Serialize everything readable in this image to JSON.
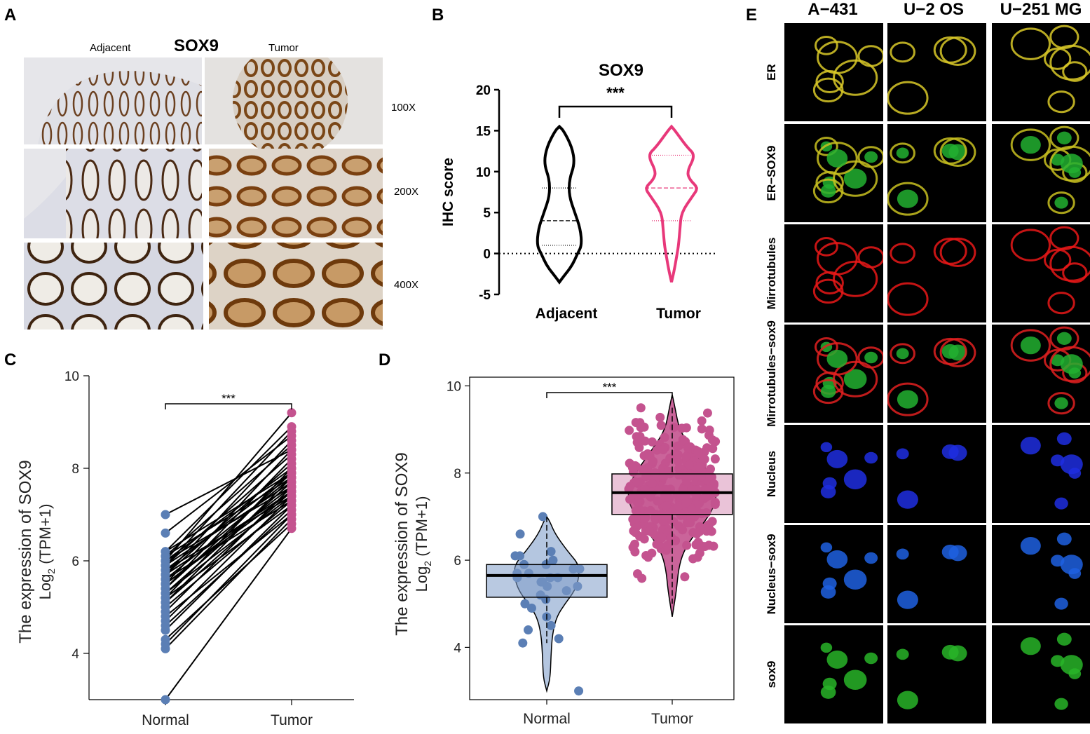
{
  "panels": {
    "a": {
      "letter": "A",
      "title": "SOX9",
      "col_left": "Adjacent",
      "col_right": "Tumor",
      "magnifications": [
        "100X",
        "200X",
        "400X"
      ]
    },
    "b": {
      "letter": "B"
    },
    "c": {
      "letter": "C"
    },
    "d": {
      "letter": "D"
    },
    "e": {
      "letter": "E",
      "columns": [
        "A−431",
        "U−2 OS",
        "U−251 MG"
      ],
      "rows": [
        "ER",
        "ER−SOX9",
        "Mirrotubules",
        "Mirrotubules−sox9",
        "Nucleus",
        "Nucleus−sox9",
        "sox9"
      ],
      "row_colors": [
        "#d8c828",
        "#c8c020",
        "#e81818",
        "#e82020",
        "#1e2ee0",
        "#1e60e0",
        "#28b428"
      ]
    }
  },
  "chart_data": [
    {
      "type": "violin",
      "title": "SOX9",
      "ylabel": "IHC score",
      "categories": [
        "Adjacent",
        "Tumor"
      ],
      "ylim": [
        -5,
        20
      ],
      "yticks": [
        -5,
        0,
        5,
        10,
        15,
        20
      ],
      "significance": "***",
      "colors": [
        "#000000",
        "#e8387a"
      ],
      "series": [
        {
          "name": "Adjacent",
          "median": 4,
          "q1": 1,
          "q3": 8,
          "min": -3.5,
          "max": 15.5
        },
        {
          "name": "Tumor",
          "median": 8,
          "q1": 4,
          "q3": 12,
          "min": -3.5,
          "max": 15.5
        }
      ]
    },
    {
      "type": "paired-scatter",
      "ylabel": "The expression of SOX9",
      "ylabel2": "Log",
      "ylabel2_sub": "2",
      "ylabel2_rest": " (TPM+1)",
      "categories": [
        "Normal",
        "Tumor"
      ],
      "ylim": [
        3,
        10
      ],
      "yticks": [
        4,
        6,
        8,
        10
      ],
      "significance": "***",
      "colors": [
        "#5b7fb5",
        "#c4538f"
      ],
      "pairs": [
        [
          3.0,
          6.7
        ],
        [
          4.1,
          6.9
        ],
        [
          4.2,
          7.0
        ],
        [
          4.3,
          6.8
        ],
        [
          4.5,
          7.2
        ],
        [
          4.6,
          7.1
        ],
        [
          4.7,
          7.4
        ],
        [
          4.8,
          7.0
        ],
        [
          4.9,
          7.6
        ],
        [
          5.0,
          7.3
        ],
        [
          5.1,
          7.5
        ],
        [
          5.1,
          7.8
        ],
        [
          5.2,
          7.2
        ],
        [
          5.2,
          8.0
        ],
        [
          5.3,
          7.4
        ],
        [
          5.3,
          7.7
        ],
        [
          5.4,
          7.9
        ],
        [
          5.4,
          8.2
        ],
        [
          5.5,
          7.5
        ],
        [
          5.5,
          7.6
        ],
        [
          5.5,
          8.4
        ],
        [
          5.6,
          7.3
        ],
        [
          5.6,
          7.8
        ],
        [
          5.7,
          7.5
        ],
        [
          5.7,
          8.1
        ],
        [
          5.7,
          8.6
        ],
        [
          5.8,
          7.4
        ],
        [
          5.8,
          7.9
        ],
        [
          5.9,
          7.7
        ],
        [
          5.9,
          8.3
        ],
        [
          5.9,
          8.8
        ],
        [
          6.0,
          7.6
        ],
        [
          6.0,
          8.0
        ],
        [
          6.0,
          9.2
        ],
        [
          6.1,
          7.8
        ],
        [
          6.1,
          8.5
        ],
        [
          6.2,
          7.9
        ],
        [
          6.2,
          8.9
        ],
        [
          6.6,
          8.7
        ],
        [
          7.0,
          8.4
        ]
      ]
    },
    {
      "type": "violin-box",
      "ylabel": "The expression of SOX9",
      "ylabel2": "Log",
      "ylabel2_sub": "2",
      "ylabel2_rest": " (TPM+1)",
      "categories": [
        "Normal",
        "Tumor"
      ],
      "ylim": [
        2.8,
        10.2
      ],
      "yticks": [
        4,
        6,
        8,
        10
      ],
      "significance": "***",
      "colors": [
        "#5b7fb5",
        "#c4538f"
      ],
      "series": [
        {
          "name": "Normal",
          "median": 5.65,
          "q1": 5.15,
          "q3": 5.9,
          "whisker_low": 4.1,
          "whisker_high": 7.0,
          "min": 3.0,
          "max": 7.0
        },
        {
          "name": "Tumor",
          "median": 7.55,
          "q1": 7.05,
          "q3": 7.98,
          "whisker_low": 5.0,
          "whisker_high": 9.5,
          "min": 4.7,
          "max": 9.8
        }
      ]
    }
  ]
}
